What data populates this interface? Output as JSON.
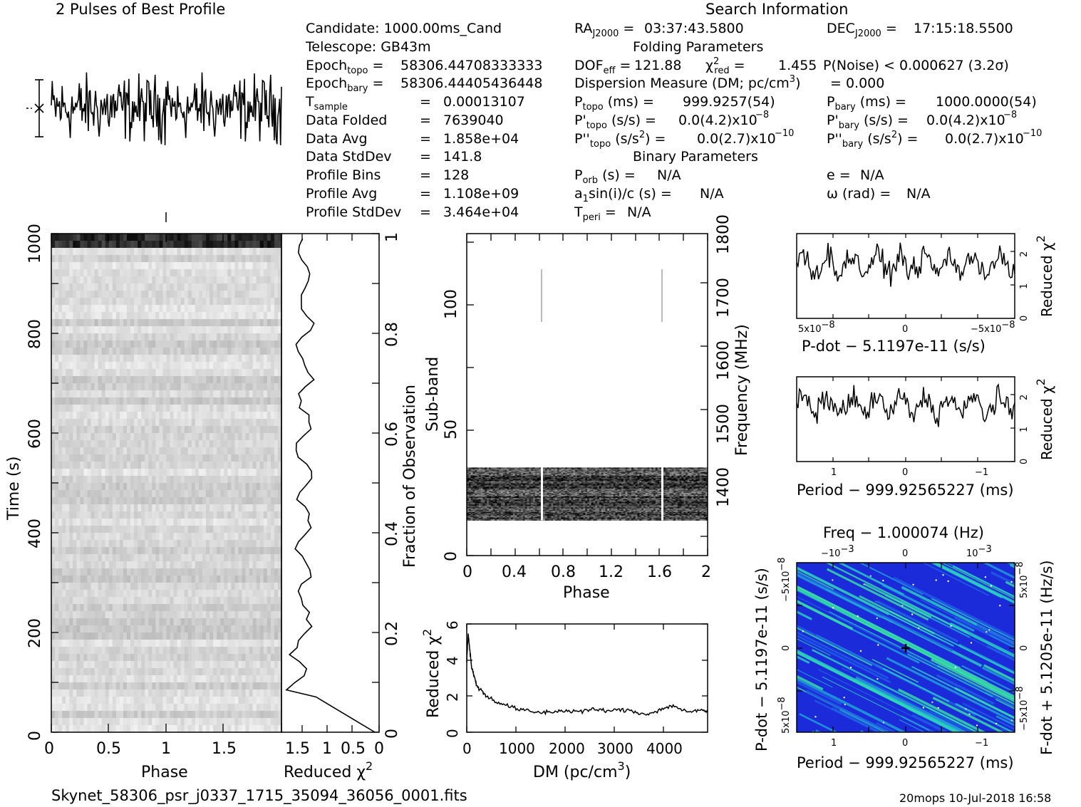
{
  "title": "2 Pulses of Best Profile",
  "search_header": "Search Information",
  "info": {
    "candidate": "Candidate:  1000.00ms_Cand",
    "telescope": "Telescope:  GB43m",
    "epoch_topo": "58306.44708333333",
    "epoch_bary": "58306.44405436448",
    "tsample": "0.00013107",
    "data_folded": "7639040",
    "data_avg": "1.858e+04",
    "data_stddev": "141.8",
    "profile_bins": "128",
    "profile_avg": "1.108e+09",
    "profile_stddev": "3.464e+04",
    "ra": "03:37:43.5800",
    "dec": "17:15:18.5500",
    "folding_params_header": "Folding Parameters",
    "dof_eff": "121.88",
    "chi2_red": "1.455",
    "p_noise": "P(Noise) < 0.000627   (3.2σ)",
    "dispersion_measure": "= 0.000",
    "p_topo": "999.9257(54)",
    "p_bary": "1000.0000(54)",
    "pdot_topo": "0.0(4.2)x10",
    "pdot_bary": "0.0(4.2)x10",
    "pddot_topo": "0.0(2.7)x10",
    "pddot_bary": "0.0(2.7)x10",
    "binary_params_header": "Binary Parameters",
    "p_orb": "N/A",
    "a1sini": "N/A",
    "t_peri": "N/A",
    "e": "N/A",
    "omega": "N/A"
  },
  "footer": {
    "filename": "Skynet_58306_psr_j0337_1715_35094_36056_0001.fits",
    "stamp": "20mops  10-Jul-2018 16:58"
  },
  "chart_data": [
    {
      "type": "line",
      "id": "profile",
      "title": "2 Pulses of Best Profile",
      "xlim": [
        0,
        2
      ],
      "n_bins": 256
    },
    {
      "type": "heatmap",
      "id": "time_phase",
      "xlabel": "Phase",
      "ylabel": "Time (s)",
      "xlim": [
        0,
        2
      ],
      "ylim": [
        0,
        1000
      ],
      "xticks": [
        "0",
        "0.5",
        "1",
        "1.5"
      ],
      "yticks": [
        "0",
        "200",
        "400",
        "600",
        "800",
        "1000"
      ]
    },
    {
      "type": "line",
      "id": "time_chi2",
      "xlabel": "Reduced χ²",
      "y2label": "Fraction of Observation",
      "xticks": [
        "1.5",
        "1",
        "0.5",
        "0"
      ],
      "yticks_right": [
        "0",
        "0.2",
        "0.4",
        "0.6",
        "0.8",
        "1"
      ]
    },
    {
      "type": "heatmap",
      "id": "subband_phase",
      "xlabel": "Phase",
      "ylabel": "Sub-band",
      "y2label": "Frequency (MHz)",
      "xlim": [
        0,
        2
      ],
      "ylim": [
        0,
        128
      ],
      "xticks": [
        "0",
        "0.4",
        "0.8",
        "1.2",
        "1.6",
        "2"
      ],
      "yticks": [
        "0",
        "50",
        "100"
      ],
      "y2ticks": [
        "1400",
        "1500",
        "1600",
        "1700",
        "1800"
      ],
      "active_subbands": [
        14,
        35
      ]
    },
    {
      "type": "line",
      "id": "dm_chi2",
      "xlabel": "DM (pc/cm",
      "ylabel": "Reduced χ",
      "xlim": [
        0,
        4900
      ],
      "ylim": [
        0,
        6
      ],
      "xticks": [
        "0",
        "1000",
        "2000",
        "3000",
        "4000"
      ],
      "yticks": [
        "0",
        "2",
        "4",
        "6"
      ],
      "points": [
        [
          0,
          4.0
        ],
        [
          30,
          5.5
        ],
        [
          60,
          4.6
        ],
        [
          100,
          3.6
        ],
        [
          150,
          3.1
        ],
        [
          200,
          2.6
        ],
        [
          300,
          2.3
        ],
        [
          400,
          2.0
        ],
        [
          600,
          1.7
        ],
        [
          800,
          1.5
        ],
        [
          1000,
          1.3
        ],
        [
          1200,
          1.2
        ],
        [
          1400,
          1.1
        ],
        [
          1600,
          1.1
        ],
        [
          1800,
          1.15
        ],
        [
          2000,
          1.2
        ],
        [
          2200,
          1.15
        ],
        [
          2400,
          1.2
        ],
        [
          2600,
          1.25
        ],
        [
          2800,
          1.2
        ],
        [
          3000,
          1.2
        ],
        [
          3200,
          1.25
        ],
        [
          3400,
          1.15
        ],
        [
          3600,
          1.0
        ],
        [
          3800,
          1.1
        ],
        [
          4000,
          1.3
        ],
        [
          4200,
          1.5
        ],
        [
          4400,
          1.2
        ],
        [
          4600,
          1.1
        ],
        [
          4800,
          1.25
        ],
        [
          4900,
          1.1
        ]
      ]
    },
    {
      "type": "line",
      "id": "pdot_chi2",
      "xlabel": "P-dot − 5.1197e-11 (s/s)",
      "ylabel": "Reduced χ",
      "ylim": [
        0,
        2.5
      ],
      "yticks": [
        "0",
        "1",
        "2"
      ],
      "xticks": [
        "5x10",
        "0",
        "−5x10"
      ],
      "xtick_exp": "−8"
    },
    {
      "type": "line",
      "id": "period_chi2",
      "xlabel": "Period − 999.92565227 (ms)",
      "ylabel": "Reduced χ",
      "ylim": [
        0,
        2.5
      ],
      "yticks": [
        "0",
        "1",
        "2"
      ],
      "xticks": [
        "1",
        "0",
        "−1"
      ]
    },
    {
      "type": "heatmap",
      "id": "p_pdot",
      "xlabel": "Period − 999.92565227 (ms)",
      "ylabel": "P-dot − 5.1197e-11 (s/s)",
      "x2label": "Freq − 1.000074 (Hz)",
      "y2label": "F-dot + 5.1205e-11 (Hz/s)",
      "xticks": [
        "1",
        "0",
        "−1"
      ],
      "x2ticks": [
        "−10",
        "0",
        "10"
      ],
      "x2tick_exp": [
        "−3",
        "",
        "−3"
      ],
      "yticks": [
        "−5x10",
        "0",
        "5x10"
      ],
      "ytick_exp": "−8",
      "y2ticks": [
        "5x10",
        "0",
        "−5x10"
      ],
      "y2tick_exp": "−8",
      "colors": [
        "#1b2bd9",
        "#1f5fe6",
        "#21a8d8",
        "#2ad3c0",
        "#38e5a3"
      ]
    }
  ]
}
